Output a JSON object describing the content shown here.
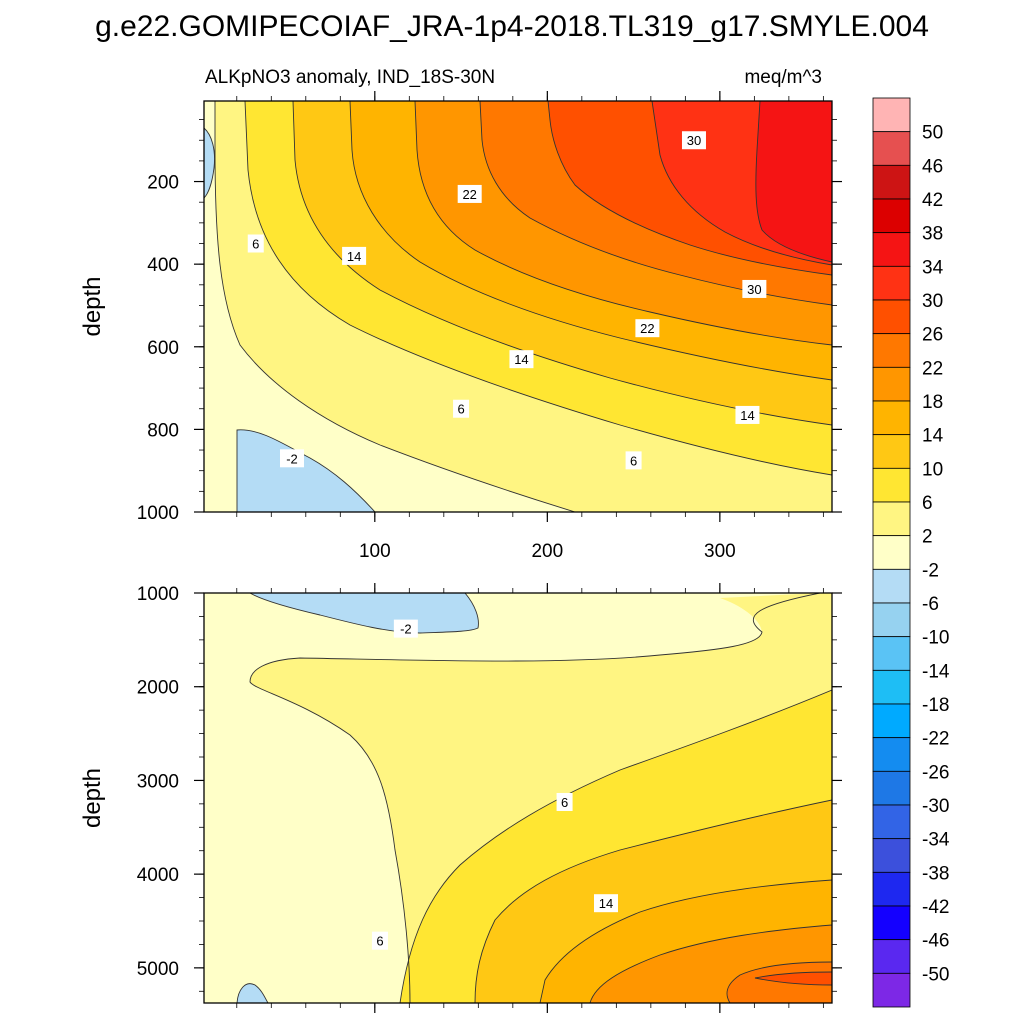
{
  "figure": {
    "title": "g.e22.GOMIPECOIAF_JRA-1p4-2018.TL319_g17.SMYLE.004",
    "left_subtitle": "ALKpNO3 anomaly, IND_18S-30N",
    "right_subtitle": "meq/m^3"
  },
  "chart_data": [
    {
      "type": "heatmap",
      "subtype": "filled-contour",
      "name": "upper",
      "ylabel": "depth",
      "xlim": [
        1,
        365
      ],
      "ylim": [
        1000,
        5
      ],
      "x_ticks": [
        100,
        200,
        300
      ],
      "x_tick_labels": [
        "100",
        "200",
        "300"
      ],
      "y_ticks": [
        200,
        400,
        600,
        800,
        1000
      ],
      "y_tick_labels": [
        "200",
        "400",
        "600",
        "800",
        "1000"
      ],
      "contour_labels": [
        {
          "text": "30",
          "x": 285,
          "y": 100
        },
        {
          "text": "22",
          "x": 155,
          "y": 230
        },
        {
          "text": "6",
          "x": 31,
          "y": 350
        },
        {
          "text": "14",
          "x": 88,
          "y": 380
        },
        {
          "text": "30",
          "x": 320,
          "y": 460
        },
        {
          "text": "22",
          "x": 258,
          "y": 555
        },
        {
          "text": "14",
          "x": 185,
          "y": 630
        },
        {
          "text": "6",
          "x": 150,
          "y": 750
        },
        {
          "text": "14",
          "x": 316,
          "y": 765
        },
        {
          "text": "6",
          "x": 250,
          "y": 875
        },
        {
          "text": "-2",
          "x": 52,
          "y": 870
        }
      ]
    },
    {
      "type": "heatmap",
      "subtype": "filled-contour",
      "name": "lower",
      "ylabel": "depth",
      "xlim": [
        1,
        365
      ],
      "ylim": [
        5375,
        1000
      ],
      "x_ticks": [
        100,
        200,
        300
      ],
      "x_tick_labels": [],
      "y_ticks": [
        1000,
        2000,
        3000,
        4000,
        5000
      ],
      "y_tick_labels": [
        "1000",
        "2000",
        "3000",
        "4000",
        "5000"
      ],
      "contour_labels": [
        {
          "text": "-2",
          "x": 118,
          "y": 1380
        },
        {
          "text": "6",
          "x": 210,
          "y": 3230
        },
        {
          "text": "14",
          "x": 234,
          "y": 4310
        },
        {
          "text": "6",
          "x": 103,
          "y": 4710
        }
      ]
    }
  ],
  "colorbar": {
    "levels": [
      "50",
      "46",
      "42",
      "38",
      "34",
      "30",
      "26",
      "22",
      "18",
      "14",
      "10",
      "6",
      "2",
      "-2",
      "-6",
      "-10",
      "-14",
      "-18",
      "-22",
      "-26",
      "-30",
      "-34",
      "-38",
      "-42",
      "-46",
      "-50"
    ],
    "colors": [
      "#FFB4B4",
      "#E65050",
      "#CD1414",
      "#DC0000",
      "#F51414",
      "#FF3214",
      "#FF5000",
      "#FF7800",
      "#FF9600",
      "#FFB400",
      "#FFC814",
      "#FFE632",
      "#FFF582",
      "#FFFFC8",
      "#B4DCF5",
      "#96D2F0",
      "#5AC3F5",
      "#1EBEF5",
      "#00AAFF",
      "#148CF0",
      "#1E78E6",
      "#3264E6",
      "#3C50DC",
      "#1E28F0",
      "#1400FF",
      "#5A28F0",
      "#7D28E6"
    ]
  },
  "colors": {
    "c_neg2": "#B4DCF5",
    "c_2": "#FFFFC8",
    "c_6": "#FFF582",
    "c_10": "#FFE632",
    "c_14": "#FFC814",
    "c_18": "#FFB400",
    "c_22": "#FF9600",
    "c_26": "#FF7800",
    "c_30": "#FF5000",
    "c_34": "#FF3214",
    "c_38": "#F51414"
  }
}
